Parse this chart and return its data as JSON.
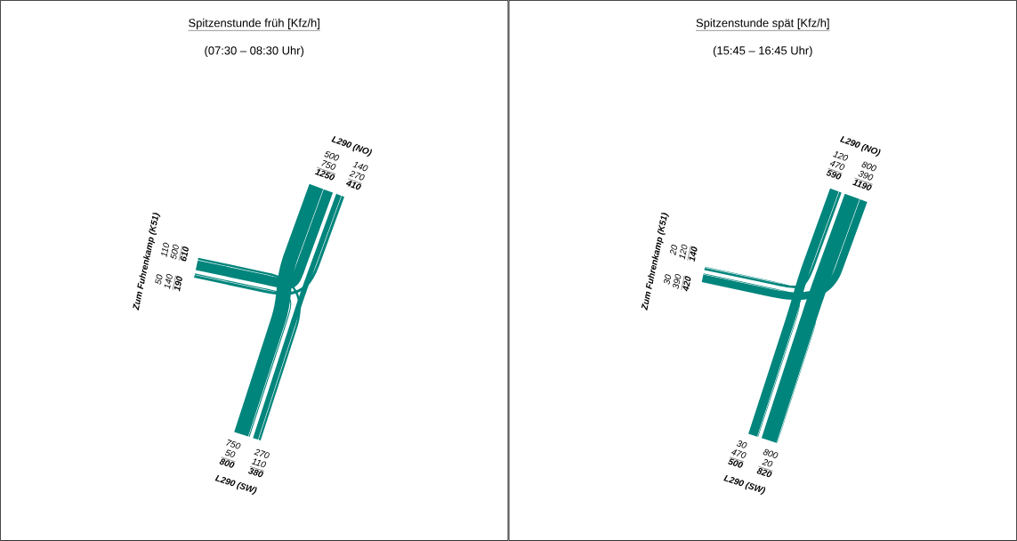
{
  "chart_data": [
    {
      "type": "other",
      "title": "Spitzenstunde früh [Kfz/h]",
      "subtitle": "(07:30 – 08:30 Uhr)",
      "categories": [
        "L290 (NO)",
        "Zum Fuhrenkamp (K51)",
        "L290 (SW)"
      ],
      "series": [
        {
          "color": "#00857c",
          "values": [
            null,
            500,
            750
          ]
        },
        {
          "color": "#00857c",
          "values": [
            140,
            null,
            50
          ]
        },
        {
          "color": "#00857c",
          "values": [
            270,
            110,
            null
          ]
        }
      ],
      "totals": [
        "1250",
        "410",
        "190",
        "610",
        "380",
        "800"
      ],
      "data_labels": true,
      "annotations": [
        "140",
        "270",
        "110",
        "500",
        "750",
        "50"
      ]
    },
    {
      "type": "other",
      "title": "Spitzenstunde spät [Kfz/h]",
      "subtitle": "(15:45 – 16:45 Uhr)",
      "categories": [
        "L290 (NO)",
        "Zum Fuhrenkamp (K51)",
        "L290 (SW)"
      ],
      "series": [
        {
          "color": "#00857c",
          "values": [
            null,
            120,
            470
          ]
        },
        {
          "color": "#00857c",
          "values": [
            390,
            null,
            30
          ]
        },
        {
          "color": "#00857c",
          "values": [
            800,
            20,
            null
          ]
        }
      ],
      "totals": [
        "590",
        "1190",
        "420",
        "140",
        "820",
        "500"
      ],
      "data_labels": true,
      "annotations": [
        "800",
        "390",
        "20",
        "120",
        "30",
        "470"
      ]
    }
  ]
}
